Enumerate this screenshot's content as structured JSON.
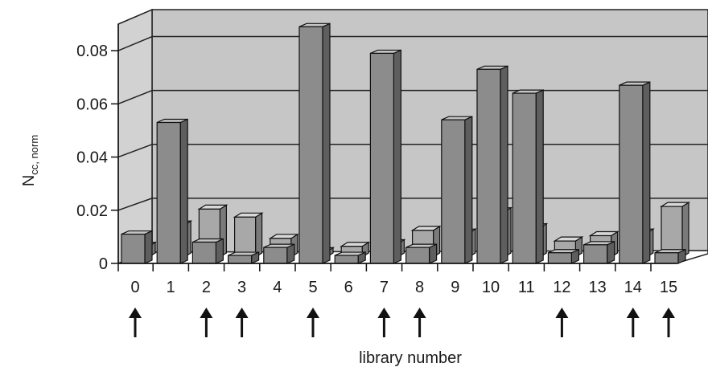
{
  "chart_data": {
    "type": "bar",
    "xlabel": "library number",
    "ylabel": {
      "main": "N",
      "subscript": "cc, norm"
    },
    "ylim": [
      0,
      0.09
    ],
    "y_ticks": [
      "0",
      "0.02",
      "0.04",
      "0.06",
      "0.08"
    ],
    "grid": true,
    "categories": [
      "0",
      "1",
      "2",
      "3",
      "4",
      "5",
      "6",
      "7",
      "8",
      "9",
      "10",
      "11",
      "12",
      "13",
      "14",
      "15"
    ],
    "series": [
      {
        "values": [
          0.011,
          0.053,
          0.008,
          0.003,
          0.006,
          0.089,
          0.003,
          0.079,
          0.006,
          0.054,
          0.073,
          0.064,
          0.004,
          0.007,
          0.067,
          0.004
        ]
      },
      {
        "values": [
          0.004,
          0.012,
          0.018,
          0.015,
          0.007,
          0.002,
          0.004,
          0.005,
          0.01,
          0.009,
          0.017,
          0.011,
          0.006,
          0.008,
          0.009,
          0.019
        ]
      }
    ],
    "marked_categories": [
      "0",
      "2",
      "3",
      "5",
      "7",
      "8",
      "12",
      "14",
      "15"
    ],
    "colors": {
      "front_face": "#8c8c8c",
      "top_face": "#c4c4c4",
      "side_face": "#5e5e5e",
      "back_front": "#a8a8a8",
      "back_top": "#d8d8d8",
      "back_side": "#7a7a7a",
      "wall": "#c6c6c6",
      "grid": "#222222"
    }
  }
}
